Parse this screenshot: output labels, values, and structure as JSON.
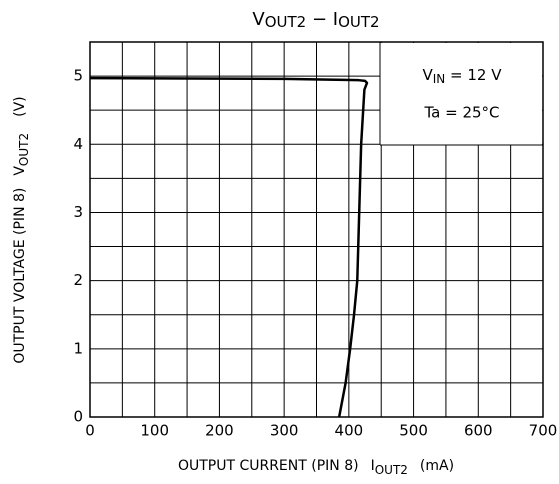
{
  "chart_data": {
    "type": "line",
    "title": [
      "V",
      "OUT2",
      " − ",
      "I",
      "OUT2"
    ],
    "x_label": [
      "OUTPUT CURRENT (PIN 8)",
      "I",
      "OUT2",
      "(mA)"
    ],
    "y_label": [
      "OUTPUT VOLTAGE (PIN 8)",
      "V",
      "OUT2",
      "(V)"
    ],
    "annotations": [
      [
        "V",
        "IN",
        " = 12 V"
      ],
      "Ta = 25°C"
    ],
    "xlim": [
      0,
      700
    ],
    "ylim": [
      0,
      5.5
    ],
    "xticks": [
      0,
      100,
      200,
      300,
      400,
      500,
      600,
      700
    ],
    "yticks": [
      0,
      1,
      2,
      3,
      4,
      5
    ],
    "xminorticks": [
      50,
      150,
      250,
      350,
      450,
      550,
      650
    ],
    "yminorticks": [
      0.5,
      1.5,
      2.5,
      3.5,
      4.5
    ],
    "grid": true,
    "series": [
      {
        "name": null,
        "color": "#000000",
        "x": [
          0,
          300,
          415,
          425,
          428,
          424,
          419,
          416,
          413,
          408,
          402,
          395,
          385
        ],
        "values": [
          4.97,
          4.96,
          4.94,
          4.93,
          4.9,
          4.8,
          4,
          3,
          2,
          1.5,
          1,
          0.5,
          0
        ]
      }
    ]
  }
}
